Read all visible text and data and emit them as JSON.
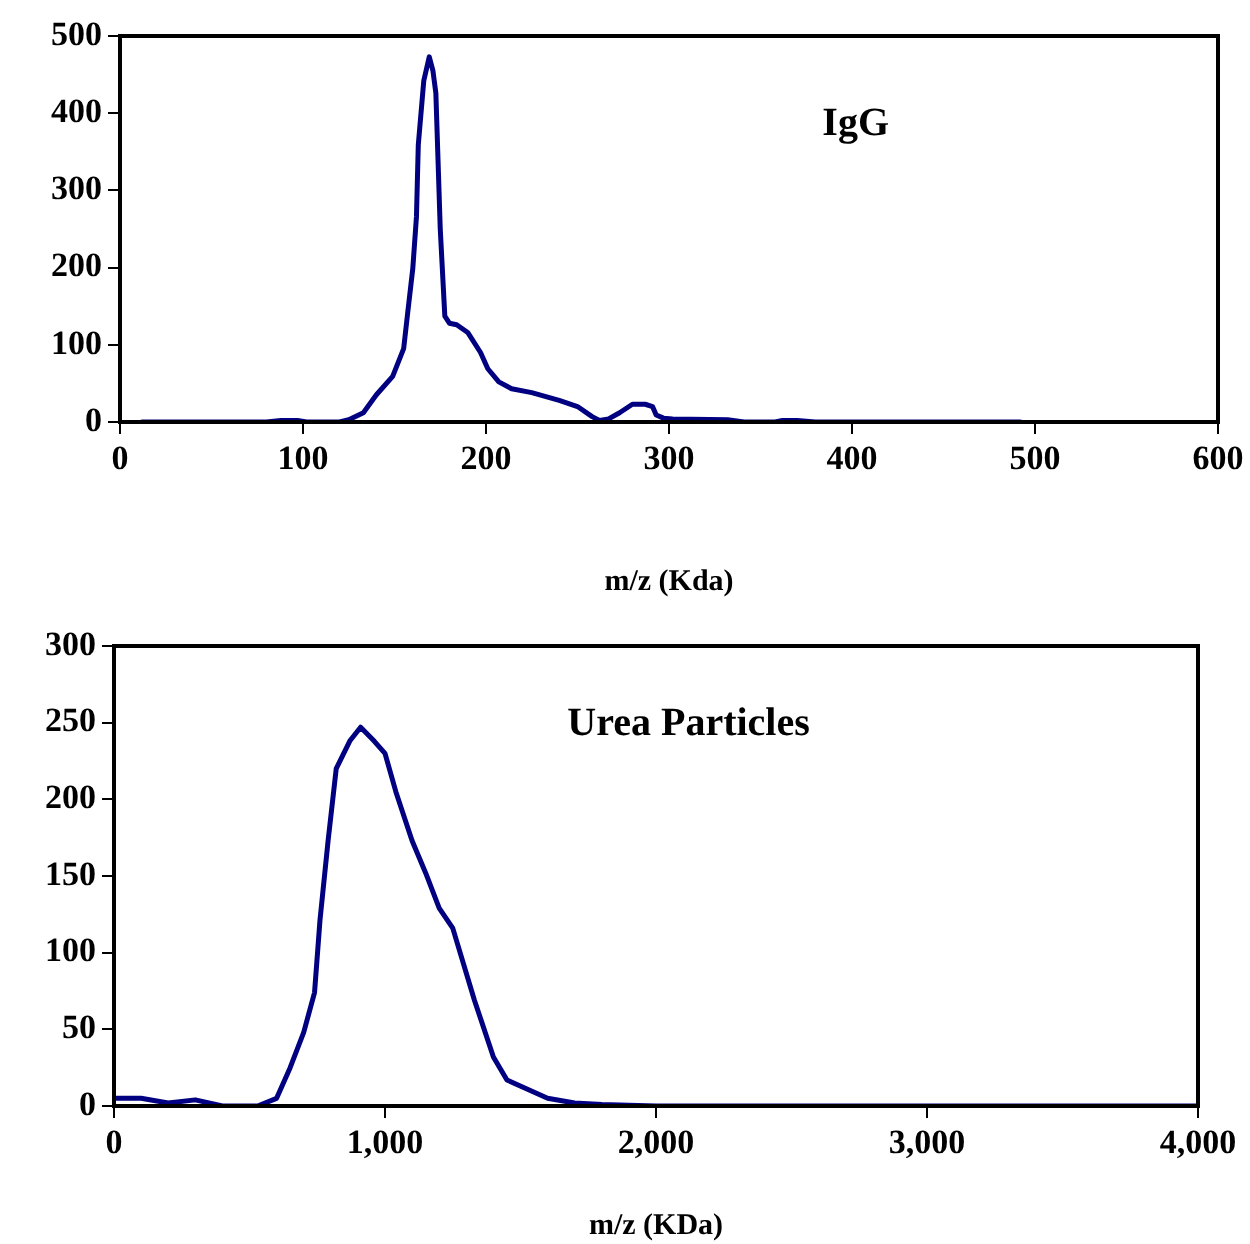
{
  "chart_data": [
    {
      "type": "line",
      "xlabel": "m/z (Kda)",
      "annotations": [
        "IgG"
      ],
      "xlim": [
        0,
        600
      ],
      "xticks": [
        0,
        100,
        200,
        300,
        400,
        500,
        600
      ],
      "ylim": [
        0,
        500
      ],
      "yticks": [
        0,
        100,
        200,
        300,
        400,
        500
      ],
      "grid": false,
      "legend": false,
      "marker": "none",
      "line_style": "solid",
      "series": [
        {
          "color": "#000080",
          "x": [
            12,
            80,
            88,
            97,
            102,
            120,
            125,
            133,
            140,
            149,
            155,
            157,
            160,
            162,
            163,
            166,
            169,
            171,
            172.6,
            175,
            177.5,
            180,
            184,
            190,
            197,
            201,
            207,
            214,
            225,
            240,
            250,
            258,
            262,
            267,
            273,
            280,
            287,
            291,
            293,
            297,
            302,
            332,
            341,
            358,
            362,
            370,
            380,
            492
          ],
          "values": [
            0,
            0,
            2,
            2,
            0,
            0,
            3,
            12,
            35,
            59,
            95,
            137,
            199,
            266,
            359,
            442,
            473,
            455,
            426,
            250,
            137,
            128,
            126,
            116,
            90,
            69,
            52,
            43,
            38,
            28,
            20,
            7,
            2,
            4,
            12,
            23,
            23,
            20,
            9,
            5,
            4,
            3,
            0,
            0,
            2,
            2,
            0,
            0
          ]
        }
      ]
    },
    {
      "type": "line",
      "xlabel": "m/z (KDa)",
      "annotations": [
        "Urea Particles"
      ],
      "xlim": [
        0,
        4000
      ],
      "xticks": [
        0,
        {
          "value": 1000,
          "label": "1,000"
        },
        {
          "value": 2000,
          "label": "2,000"
        },
        {
          "value": 3000,
          "label": "3,000"
        },
        {
          "value": 4000,
          "label": "4,000"
        }
      ],
      "ylim": [
        0,
        300
      ],
      "yticks": [
        0,
        50,
        100,
        150,
        200,
        250,
        300
      ],
      "grid": false,
      "legend": false,
      "marker": "none",
      "line_style": "solid",
      "series": [
        {
          "color": "#000080",
          "x": [
            0,
            100,
            200,
            300,
            400,
            530,
            600,
            650,
            700,
            740,
            760,
            790,
            820,
            870,
            910,
            960,
            1000,
            1040,
            1100,
            1150,
            1200,
            1250,
            1330,
            1400,
            1450,
            1600,
            1700,
            1800,
            2000,
            4000
          ],
          "values": [
            5,
            5,
            2,
            4,
            0,
            0,
            5,
            25,
            48,
            74,
            121,
            173,
            220,
            238,
            247,
            238,
            230,
            205,
            173,
            152,
            129,
            116,
            69,
            32,
            17,
            5,
            2,
            1,
            0,
            0
          ]
        }
      ]
    }
  ]
}
